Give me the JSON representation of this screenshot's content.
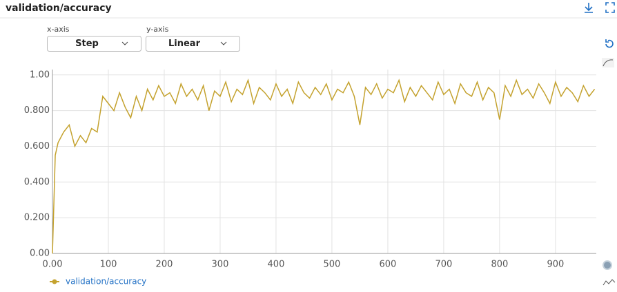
{
  "title": "validation/accuracy",
  "controls": {
    "x_axis_label": "x-axis",
    "x_axis_value": "Step",
    "y_axis_label": "y-axis",
    "y_axis_value": "Linear"
  },
  "chart_data": {
    "type": "line",
    "x": [
      0,
      5,
      10,
      20,
      30,
      40,
      50,
      60,
      70,
      80,
      90,
      100,
      110,
      120,
      130,
      140,
      150,
      160,
      170,
      180,
      190,
      200,
      210,
      220,
      230,
      240,
      250,
      260,
      270,
      280,
      290,
      300,
      310,
      320,
      330,
      340,
      350,
      360,
      370,
      380,
      390,
      400,
      410,
      420,
      430,
      440,
      450,
      460,
      470,
      480,
      490,
      500,
      510,
      520,
      530,
      540,
      550,
      560,
      570,
      580,
      590,
      600,
      610,
      620,
      630,
      640,
      650,
      660,
      670,
      680,
      690,
      700,
      710,
      720,
      730,
      740,
      750,
      760,
      770,
      780,
      790,
      800,
      810,
      820,
      830,
      840,
      850,
      860,
      870,
      880,
      890,
      900,
      910,
      920,
      930,
      940,
      950,
      960,
      970
    ],
    "series": [
      {
        "name": "validation/accuracy",
        "color": "#c4a22e",
        "values": [
          0.0,
          0.55,
          0.62,
          0.68,
          0.72,
          0.6,
          0.66,
          0.62,
          0.7,
          0.68,
          0.88,
          0.84,
          0.8,
          0.9,
          0.82,
          0.76,
          0.88,
          0.8,
          0.92,
          0.86,
          0.94,
          0.88,
          0.9,
          0.84,
          0.95,
          0.88,
          0.92,
          0.86,
          0.94,
          0.8,
          0.91,
          0.88,
          0.96,
          0.85,
          0.92,
          0.89,
          0.97,
          0.84,
          0.93,
          0.9,
          0.86,
          0.95,
          0.88,
          0.92,
          0.84,
          0.96,
          0.9,
          0.87,
          0.93,
          0.89,
          0.95,
          0.86,
          0.92,
          0.9,
          0.96,
          0.88,
          0.72,
          0.93,
          0.89,
          0.95,
          0.87,
          0.92,
          0.9,
          0.97,
          0.85,
          0.93,
          0.88,
          0.94,
          0.9,
          0.86,
          0.96,
          0.89,
          0.92,
          0.84,
          0.95,
          0.9,
          0.88,
          0.96,
          0.86,
          0.93,
          0.9,
          0.75,
          0.94,
          0.88,
          0.97,
          0.89,
          0.92,
          0.87,
          0.95,
          0.9,
          0.84,
          0.96,
          0.88,
          0.93,
          0.9,
          0.85,
          0.94,
          0.88,
          0.92
        ]
      }
    ],
    "xlim": [
      0,
      973
    ],
    "ylim": [
      0,
      1.03
    ],
    "xticks": [
      {
        "value": 0,
        "label": "0.00"
      },
      100,
      200,
      300,
      400,
      500,
      600,
      700,
      800,
      900
    ],
    "yticks": [
      {
        "value": 0,
        "label": "0.00"
      },
      {
        "value": 0.2,
        "label": "0.200"
      },
      {
        "value": 0.4,
        "label": "0.400"
      },
      {
        "value": 0.6,
        "label": "0.600"
      },
      {
        "value": 0.8,
        "label": "0.800"
      },
      {
        "value": 1,
        "label": "1.00"
      }
    ],
    "grid": true
  }
}
